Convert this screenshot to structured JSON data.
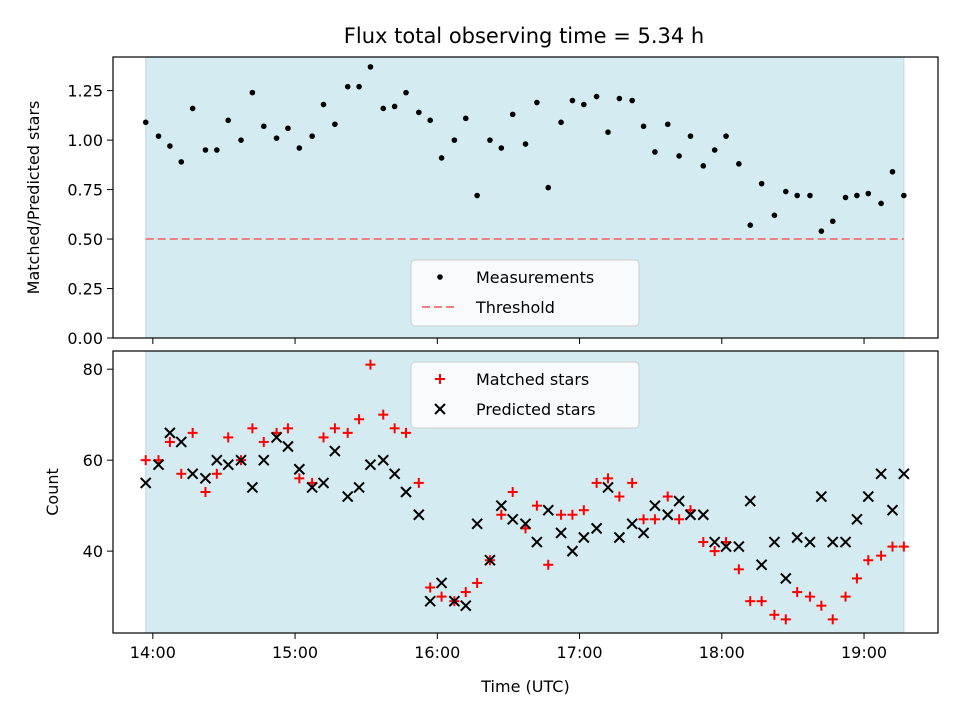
{
  "title": "Flux total observing time = 5.34 h",
  "colors": {
    "band": "#d4ebf1",
    "matched": "#ff0000",
    "predicted": "#000000",
    "measurement": "#000000",
    "threshold": "#f08080"
  },
  "chart_data": [
    {
      "type": "scatter",
      "ylabel": "Matched/Predicted stars",
      "ylim": [
        0,
        1.42
      ],
      "xlim": [
        13.72,
        19.52
      ],
      "yticks": [
        "0.00",
        "0.25",
        "0.50",
        "0.75",
        "1.00",
        "1.25"
      ],
      "shaded_range": [
        13.95,
        19.28
      ],
      "threshold": 0.5,
      "legend": {
        "placement": "lower-center",
        "entries": [
          "Measurements",
          "Threshold"
        ]
      },
      "series": [
        {
          "name": "Measurements",
          "x": [
            13.95,
            14.04,
            14.12,
            14.2,
            14.28,
            14.37,
            14.45,
            14.53,
            14.62,
            14.7,
            14.78,
            14.87,
            14.95,
            15.03,
            15.12,
            15.2,
            15.28,
            15.37,
            15.45,
            15.53,
            15.62,
            15.7,
            15.78,
            15.87,
            15.95,
            16.03,
            16.12,
            16.2,
            16.28,
            16.37,
            16.45,
            16.53,
            16.62,
            16.7,
            16.78,
            16.87,
            16.95,
            17.03,
            17.12,
            17.2,
            17.28,
            17.37,
            17.45,
            17.53,
            17.62,
            17.7,
            17.78,
            17.87,
            17.95,
            18.03,
            18.12,
            18.2,
            18.28,
            18.37,
            18.45,
            18.53,
            18.62,
            18.7,
            18.78,
            18.87,
            18.95,
            19.03,
            19.12,
            19.2,
            19.28
          ],
          "y": [
            1.09,
            1.02,
            0.97,
            0.89,
            1.16,
            0.95,
            0.95,
            1.1,
            1.0,
            1.24,
            1.07,
            1.01,
            1.06,
            0.96,
            1.02,
            1.18,
            1.08,
            1.27,
            1.27,
            1.37,
            1.16,
            1.17,
            1.24,
            1.14,
            1.1,
            0.91,
            1.0,
            1.11,
            0.72,
            1.0,
            0.96,
            1.13,
            0.98,
            1.19,
            0.76,
            1.09,
            1.2,
            1.18,
            1.22,
            1.04,
            1.21,
            1.2,
            1.07,
            0.94,
            1.08,
            0.92,
            1.02,
            0.87,
            0.95,
            1.02,
            0.88,
            0.57,
            0.78,
            0.62,
            0.74,
            0.72,
            0.72,
            0.54,
            0.59,
            0.71,
            0.72,
            0.73,
            0.68,
            0.84,
            0.72
          ]
        }
      ]
    },
    {
      "type": "scatter",
      "xlabel": "Time (UTC)",
      "ylabel": "Count",
      "ylim": [
        22,
        84
      ],
      "xlim": [
        13.72,
        19.52
      ],
      "yticks": [
        "40",
        "60",
        "80"
      ],
      "xticks": [
        "14:00",
        "15:00",
        "16:00",
        "17:00",
        "18:00",
        "19:00"
      ],
      "shaded_range": [
        13.95,
        19.28
      ],
      "legend": {
        "placement": "upper-center",
        "entries": [
          "Matched stars",
          "Predicted stars"
        ]
      },
      "series": [
        {
          "name": "Matched stars",
          "x": [
            13.95,
            14.04,
            14.12,
            14.2,
            14.28,
            14.37,
            14.45,
            14.53,
            14.62,
            14.7,
            14.78,
            14.87,
            14.95,
            15.03,
            15.12,
            15.2,
            15.28,
            15.37,
            15.45,
            15.53,
            15.62,
            15.7,
            15.78,
            15.87,
            15.95,
            16.03,
            16.12,
            16.2,
            16.28,
            16.37,
            16.45,
            16.53,
            16.62,
            16.7,
            16.78,
            16.87,
            16.95,
            17.03,
            17.12,
            17.2,
            17.28,
            17.37,
            17.45,
            17.53,
            17.62,
            17.7,
            17.78,
            17.87,
            17.95,
            18.03,
            18.12,
            18.2,
            18.28,
            18.37,
            18.45,
            18.53,
            18.62,
            18.7,
            18.78,
            18.87,
            18.95,
            19.03,
            19.12,
            19.2,
            19.28
          ],
          "y": [
            60,
            60,
            64,
            57,
            66,
            53,
            57,
            65,
            60,
            67,
            64,
            66,
            67,
            56,
            55,
            65,
            67,
            66,
            69,
            81,
            70,
            67,
            66,
            55,
            32,
            30,
            29,
            31,
            33,
            38,
            48,
            53,
            45,
            50,
            37,
            48,
            48,
            49,
            55,
            56,
            52,
            55,
            47,
            47,
            52,
            47,
            49,
            42,
            40,
            42,
            36,
            29,
            29,
            26,
            25,
            31,
            30,
            28,
            25,
            30,
            34,
            38,
            39,
            41,
            41
          ]
        },
        {
          "name": "Predicted stars",
          "x": [
            13.95,
            14.04,
            14.12,
            14.2,
            14.28,
            14.37,
            14.45,
            14.53,
            14.62,
            14.7,
            14.78,
            14.87,
            14.95,
            15.03,
            15.12,
            15.2,
            15.28,
            15.37,
            15.45,
            15.53,
            15.62,
            15.7,
            15.78,
            15.87,
            15.95,
            16.03,
            16.12,
            16.2,
            16.28,
            16.37,
            16.45,
            16.53,
            16.62,
            16.7,
            16.78,
            16.87,
            16.95,
            17.03,
            17.12,
            17.2,
            17.28,
            17.37,
            17.45,
            17.53,
            17.62,
            17.7,
            17.78,
            17.87,
            17.95,
            18.03,
            18.12,
            18.2,
            18.28,
            18.37,
            18.45,
            18.53,
            18.62,
            18.7,
            18.78,
            18.87,
            18.95,
            19.03,
            19.12,
            19.2,
            19.28
          ],
          "y": [
            55,
            59,
            66,
            64,
            57,
            56,
            60,
            59,
            60,
            54,
            60,
            65,
            63,
            58,
            54,
            55,
            62,
            52,
            54,
            59,
            60,
            57,
            53,
            48,
            29,
            33,
            29,
            28,
            46,
            38,
            50,
            47,
            46,
            42,
            49,
            44,
            40,
            43,
            45,
            54,
            43,
            46,
            44,
            50,
            48,
            51,
            48,
            48,
            42,
            41,
            41,
            51,
            37,
            42,
            34,
            43,
            42,
            52,
            42,
            42,
            47,
            52,
            57,
            49,
            57
          ]
        }
      ]
    }
  ]
}
